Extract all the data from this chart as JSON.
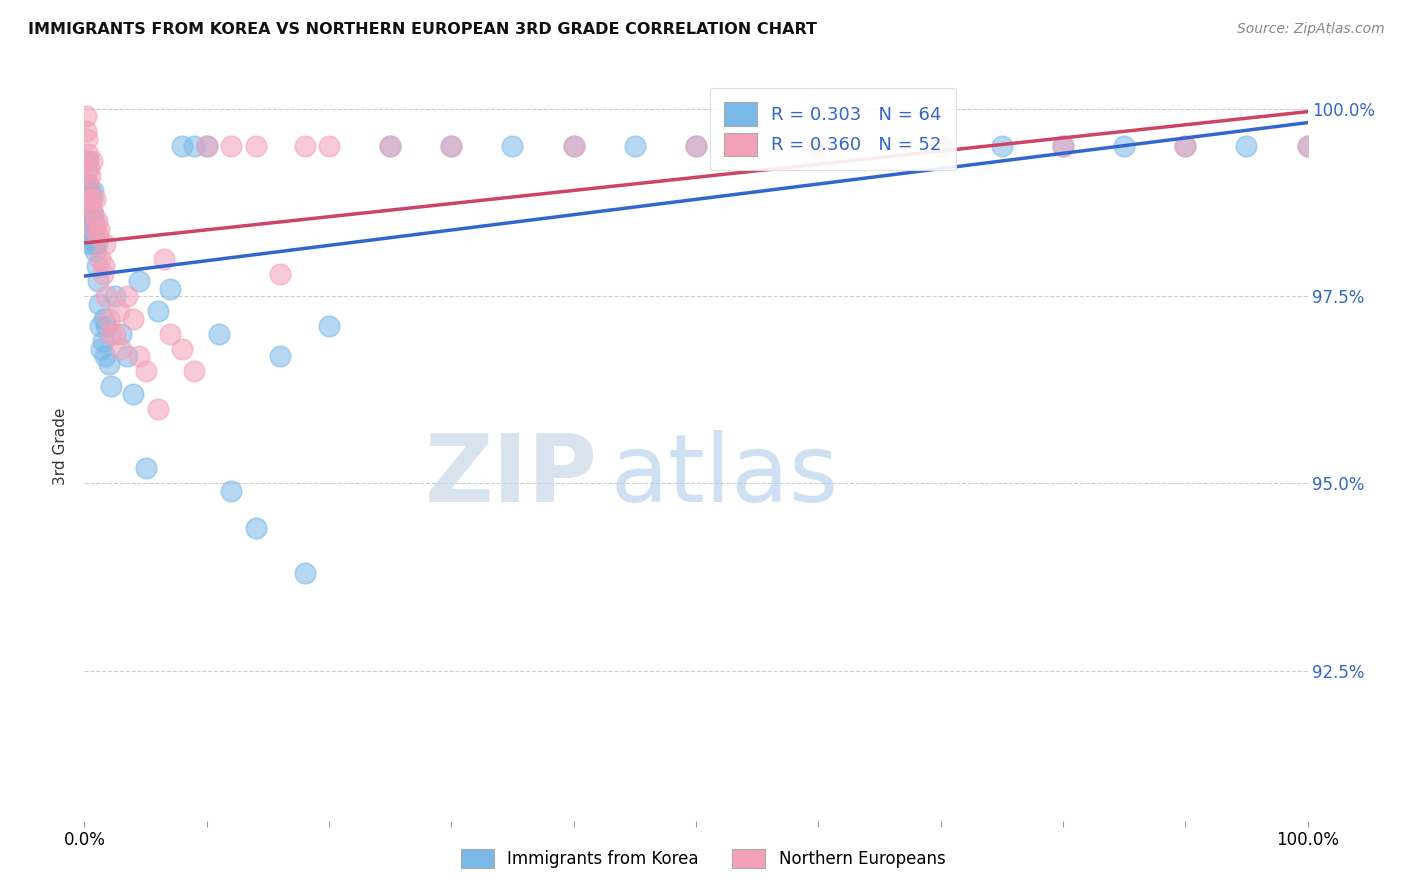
{
  "title": "IMMIGRANTS FROM KOREA VS NORTHERN EUROPEAN 3RD GRADE CORRELATION CHART",
  "source": "Source: ZipAtlas.com",
  "ylabel": "3rd Grade",
  "y_tick_labels": [
    "100.0%",
    "97.5%",
    "95.0%",
    "92.5%"
  ],
  "y_tick_values": [
    1.0,
    0.975,
    0.95,
    0.925
  ],
  "x_range": [
    0.0,
    1.0
  ],
  "y_range": [
    0.905,
    1.005
  ],
  "legend_korea_R": 0.303,
  "legend_korea_N": 64,
  "legend_northern_R": 0.36,
  "legend_northern_N": 52,
  "korea_color": "#7ab8e8",
  "northern_color": "#f4a0b8",
  "korea_line_color": "#3366cc",
  "northern_line_color": "#cc4466",
  "watermark_zip": "ZIP",
  "watermark_atlas": "atlas",
  "korea_x": [
    0.001,
    0.001,
    0.002,
    0.002,
    0.003,
    0.003,
    0.003,
    0.004,
    0.004,
    0.005,
    0.005,
    0.005,
    0.006,
    0.006,
    0.007,
    0.007,
    0.007,
    0.008,
    0.008,
    0.009,
    0.009,
    0.01,
    0.01,
    0.011,
    0.012,
    0.013,
    0.014,
    0.015,
    0.016,
    0.017,
    0.018,
    0.02,
    0.022,
    0.025,
    0.03,
    0.035,
    0.04,
    0.045,
    0.05,
    0.06,
    0.07,
    0.08,
    0.09,
    0.1,
    0.11,
    0.12,
    0.14,
    0.16,
    0.18,
    0.2,
    0.25,
    0.3,
    0.35,
    0.4,
    0.45,
    0.5,
    0.6,
    0.7,
    0.75,
    0.8,
    0.85,
    0.9,
    0.95,
    1.0
  ],
  "korea_y": [
    0.99,
    0.993,
    0.988,
    0.992,
    0.986,
    0.99,
    0.993,
    0.985,
    0.988,
    0.982,
    0.986,
    0.989,
    0.984,
    0.988,
    0.983,
    0.986,
    0.989,
    0.982,
    0.985,
    0.981,
    0.984,
    0.979,
    0.982,
    0.977,
    0.974,
    0.971,
    0.968,
    0.969,
    0.972,
    0.967,
    0.971,
    0.966,
    0.963,
    0.975,
    0.97,
    0.967,
    0.962,
    0.977,
    0.952,
    0.973,
    0.976,
    0.995,
    0.995,
    0.995,
    0.97,
    0.949,
    0.944,
    0.967,
    0.938,
    0.971,
    0.995,
    0.995,
    0.995,
    0.995,
    0.995,
    0.995,
    0.995,
    0.995,
    0.995,
    0.995,
    0.995,
    0.995,
    0.995,
    0.995
  ],
  "northern_x": [
    0.001,
    0.001,
    0.002,
    0.002,
    0.003,
    0.003,
    0.004,
    0.004,
    0.005,
    0.005,
    0.006,
    0.006,
    0.007,
    0.008,
    0.009,
    0.01,
    0.011,
    0.012,
    0.013,
    0.015,
    0.016,
    0.017,
    0.018,
    0.02,
    0.022,
    0.025,
    0.028,
    0.03,
    0.035,
    0.04,
    0.045,
    0.05,
    0.06,
    0.065,
    0.07,
    0.08,
    0.09,
    0.1,
    0.12,
    0.14,
    0.16,
    0.18,
    0.2,
    0.25,
    0.3,
    0.4,
    0.5,
    0.6,
    0.7,
    0.8,
    0.9,
    1.0
  ],
  "northern_y": [
    0.997,
    0.999,
    0.993,
    0.996,
    0.99,
    0.994,
    0.988,
    0.992,
    0.987,
    0.991,
    0.988,
    0.993,
    0.986,
    0.984,
    0.988,
    0.985,
    0.983,
    0.984,
    0.98,
    0.978,
    0.979,
    0.982,
    0.975,
    0.972,
    0.97,
    0.97,
    0.973,
    0.968,
    0.975,
    0.972,
    0.967,
    0.965,
    0.96,
    0.98,
    0.97,
    0.968,
    0.965,
    0.995,
    0.995,
    0.995,
    0.978,
    0.995,
    0.995,
    0.995,
    0.995,
    0.995,
    0.995,
    0.995,
    0.995,
    0.995,
    0.995,
    0.995
  ]
}
